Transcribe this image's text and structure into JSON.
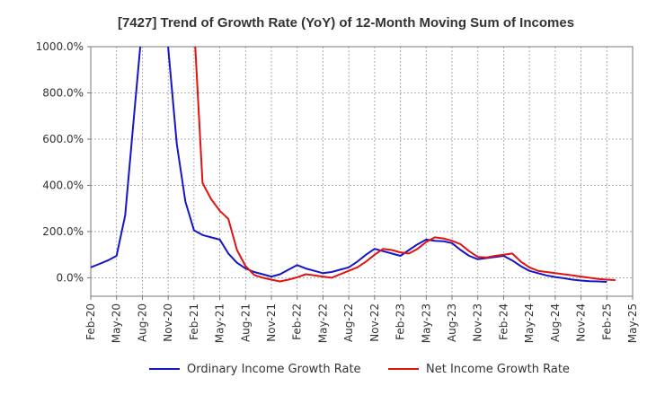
{
  "chart_data": {
    "type": "line",
    "title": "[7427]  Trend of Growth Rate (YoY) of 12-Month Moving Sum of Incomes",
    "xlabel": "",
    "ylabel": "",
    "ylim": [
      -80,
      1000
    ],
    "y_ticks": [
      0,
      200,
      400,
      600,
      800,
      1000
    ],
    "y_tick_labels": [
      "0.0%",
      "200.0%",
      "400.0%",
      "600.0%",
      "800.0%",
      "1000.0%"
    ],
    "x_tick_labels": [
      "Feb-20",
      "May-20",
      "Aug-20",
      "Nov-20",
      "Feb-21",
      "May-21",
      "Aug-21",
      "Nov-21",
      "Feb-22",
      "May-22",
      "Aug-22",
      "Nov-22",
      "Feb-23",
      "May-23",
      "Aug-23",
      "Nov-23",
      "Feb-24",
      "May-24",
      "Aug-24",
      "Nov-24",
      "Feb-25",
      "May-25"
    ],
    "grid": true,
    "legend_position": "bottom",
    "series": [
      {
        "name": "Ordinary Income Growth Rate",
        "color": "#1515c8",
        "values": [
          45,
          60,
          75,
          95,
          270,
          690,
          1100,
          null,
          null,
          1000,
          580,
          330,
          205,
          185,
          175,
          165,
          105,
          65,
          40,
          25,
          15,
          5,
          15,
          35,
          55,
          40,
          30,
          20,
          25,
          35,
          45,
          70,
          100,
          125,
          115,
          105,
          95,
          120,
          145,
          165,
          160,
          158,
          150,
          120,
          95,
          80,
          85,
          90,
          95,
          75,
          50,
          30,
          20,
          10,
          3,
          -2,
          -8,
          -12,
          -15,
          -16,
          -18,
          null,
          null
        ]
      },
      {
        "name": "Net Income Growth Rate",
        "color": "#e11212",
        "values": [
          null,
          null,
          null,
          null,
          null,
          null,
          null,
          null,
          null,
          null,
          null,
          null,
          1100,
          410,
          340,
          290,
          255,
          120,
          50,
          12,
          0,
          -8,
          -16,
          -8,
          2,
          15,
          10,
          5,
          0,
          15,
          30,
          45,
          70,
          100,
          125,
          120,
          110,
          105,
          125,
          155,
          175,
          170,
          160,
          145,
          115,
          90,
          88,
          95,
          100,
          105,
          70,
          45,
          30,
          25,
          20,
          15,
          10,
          5,
          0,
          -5,
          -8,
          -10,
          null
        ]
      }
    ]
  }
}
